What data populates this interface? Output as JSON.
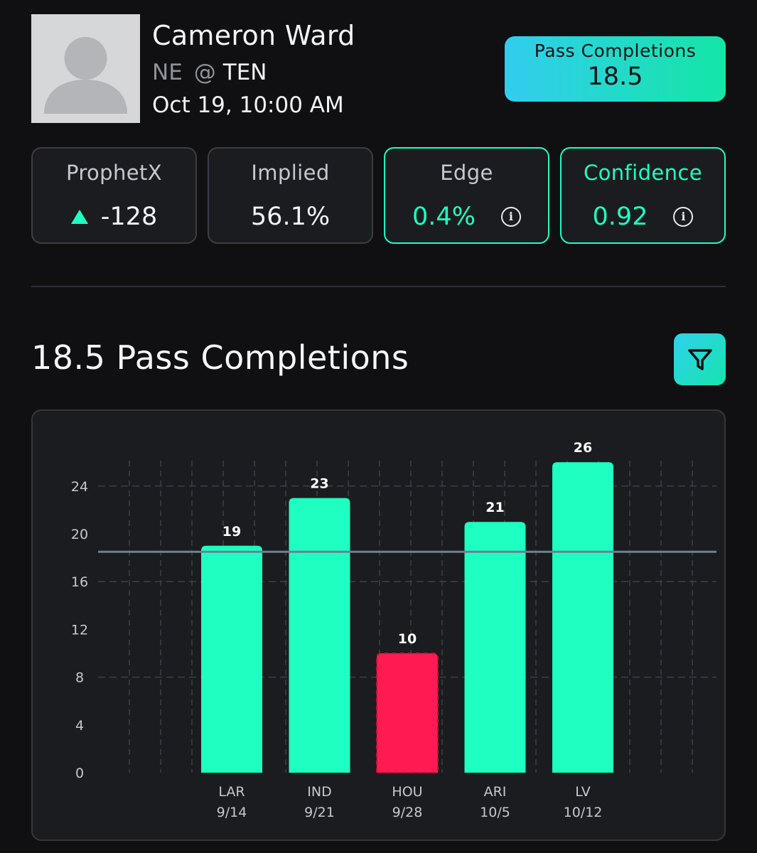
{
  "player": {
    "name": "Cameron Ward",
    "away_team": "NE",
    "at_symbol": "@",
    "home_team": "TEN",
    "game_time": "Oct 19, 10:00 AM"
  },
  "prop_line": {
    "label": "Pass Completions",
    "value": "18.5"
  },
  "stats": {
    "prophetx": {
      "label": "ProphetX",
      "value": "-128",
      "trend_icon": "triangle-up-icon"
    },
    "implied": {
      "label": "Implied",
      "value": "56.1%"
    },
    "edge": {
      "label": "Edge",
      "value": "0.4%",
      "info_icon": "info-icon"
    },
    "confidence": {
      "label": "Confidence",
      "value": "0.92",
      "info_icon": "info-icon"
    }
  },
  "chart_section": {
    "title": "18.5 Pass Completions",
    "filter_icon": "filter-icon"
  },
  "colors": {
    "accent": "#1effc2",
    "over_bar": "#1effc2",
    "under_bar": "#ff1a52",
    "threshold_line": "#6f8190",
    "background": "#101012",
    "card_bg": "#1b1c20"
  },
  "chart_data": {
    "type": "bar",
    "categories": [
      "LAR",
      "IND",
      "HOU",
      "ARI",
      "LV"
    ],
    "dates": [
      "9/14",
      "9/21",
      "9/28",
      "10/5",
      "10/12"
    ],
    "values": [
      19,
      23,
      10,
      21,
      26
    ],
    "value_labels": [
      "19",
      "23",
      "10",
      "21",
      "26"
    ],
    "threshold": 18.5,
    "ylim": [
      0,
      26
    ],
    "yticks": [
      0,
      4,
      8,
      12,
      16,
      20,
      24
    ],
    "ytick_labels": [
      "0",
      "4",
      "8",
      "12",
      "16",
      "20",
      "24"
    ],
    "bar_status": [
      "over",
      "over",
      "under",
      "over",
      "over"
    ],
    "grid": true,
    "title": "",
    "xlabel": "",
    "ylabel": ""
  }
}
